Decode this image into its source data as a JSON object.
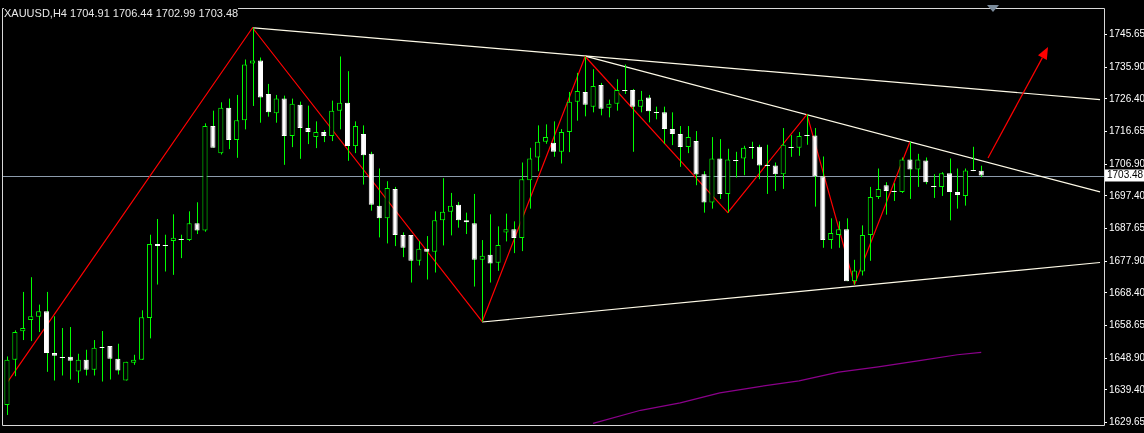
{
  "chart_data": {
    "type": "candlestick",
    "title": "XAUUSD,H4 1704.91 1706.44 1702.99 1703.48",
    "categories": [
      null,
      null,
      null,
      null,
      null,
      null,
      null,
      null,
      null,
      null,
      null,
      null,
      null,
      null,
      null,
      null,
      null,
      null,
      null,
      null,
      null,
      null,
      null,
      null,
      null,
      null,
      null,
      null,
      null,
      null,
      null,
      null,
      null,
      null,
      null,
      null,
      null,
      null,
      null,
      null,
      null,
      null,
      null,
      null,
      null,
      null,
      null,
      null,
      null,
      null,
      null,
      null,
      null,
      null,
      null,
      null,
      null,
      null,
      null,
      null,
      null,
      null,
      null,
      null,
      null,
      null,
      null,
      null,
      null,
      null,
      null,
      null,
      null,
      null,
      null,
      null,
      null,
      null,
      null,
      null,
      null,
      null,
      null,
      null,
      null,
      null,
      null,
      null,
      null,
      null,
      null,
      null,
      null,
      null,
      null,
      null,
      null,
      null,
      null,
      null,
      null,
      null,
      null,
      null,
      null,
      null,
      null,
      null,
      null,
      null,
      null,
      null,
      null,
      null,
      null,
      null,
      null,
      null,
      null,
      null,
      null,
      null,
      null,
      null,
      null,
      null,
      null,
      null,
      null,
      null,
      null,
      null,
      null,
      null,
      null,
      null,
      null,
      null,
      null
    ],
    "ylim": [
      1628.9,
      1753.6
    ],
    "yticks": [
      1745.65,
      {
        "value": 1735.9,
        "label": "1735.90"
      },
      {
        "value": 1726.4,
        "label": "1726.40"
      },
      1716.65,
      {
        "value": 1706.9,
        "label": "1706.90"
      },
      {
        "value": 1697.4,
        "label": "1697.40"
      },
      1687.65,
      {
        "value": 1677.9,
        "label": "1677.90"
      },
      {
        "value": 1668.4,
        "label": "1668.40"
      },
      1658.65,
      {
        "value": 1648.9,
        "label": "1648.90"
      },
      {
        "value": 1639.4,
        "label": "1639.40"
      },
      1629.65
    ],
    "tick_labels": "y",
    "grid": false,
    "legend": false,
    "ref_lines": [
      {
        "axis": "y",
        "value": 1703.48,
        "label": "1703.48",
        "color": "#8c9bab"
      }
    ],
    "series": [
      {
        "type": "candlestick",
        "color": "#00ff00",
        "colors": [
          "#00ff00",
          "#00ff00",
          "#00ff00",
          "#00ff00",
          "#00ff00",
          "#ffffff",
          "#ffffff",
          "#ffffff",
          "#ffffff",
          "#00ff00",
          "#ffffff",
          "#00ff00",
          "#ffffff",
          "#ffffff",
          "#ffffff",
          "#00ff00",
          "#00ff00",
          "#00ff00",
          "#00ff00",
          "#ffffff",
          "#ffffff",
          "#00ff00",
          "#ffffff",
          "#00ff00",
          "#ffffff",
          "#00ff00",
          "#ffffff",
          "#00ff00",
          "#ffffff",
          "#00ff00",
          "#00ff00",
          "#00ff00",
          "#ffffff",
          "#ffffff",
          "#00ff00",
          "#ffffff",
          "#00ff00",
          "#ffffff",
          "#ffffff",
          "#00ff00",
          "#ffffff",
          "#00ff00",
          "#00ff00",
          "#ffffff",
          "#00ff00",
          "#ffffff",
          "#ffffff",
          "#ffffff",
          "#00ff00",
          "#ffffff",
          "#ffffff",
          "#ffffff",
          "#00ff00",
          "#ffffff",
          "#00ff00",
          "#00ff00",
          "#00ff00",
          "#ffffff",
          "#ffffff",
          "#ffffff",
          "#00ff00",
          "#ffffff",
          "#00ff00",
          "#00ff00",
          "#ffffff",
          "#00ff00",
          "#00ff00",
          "#00ff00",
          "#00ff00",
          "#ffffff",
          "#00ff00",
          "#00ff00",
          "#00ff00",
          "#ffffff",
          "#00ff00",
          "#ffffff",
          "#00ff00",
          "#00ff00",
          "#ffffff",
          "#ffffff",
          "#00ff00",
          "#ffffff",
          "#ffffff",
          "#ffffff",
          "#ffffff",
          "#ffffff",
          "#00ff00",
          "#ffffff",
          "#ffffff",
          "#00ff00",
          "#ffffff",
          "#00ff00",
          "#ffffff",
          "#00ff00",
          "#ffffff",
          "#ffffff",
          "#ffffff",
          "#ffffff",
          "#00ff00",
          "#ffffff",
          "#00ff00",
          "#ffffff",
          "#ffffff",
          "#ffffff",
          "#00ff00",
          "#00ff00",
          "#ffffff",
          "#00ff00",
          "#00ff00",
          "#00ff00",
          "#00ff00",
          "#ffffff",
          "#ffffff",
          "#00ff00",
          "#ffffff",
          "#00ff00",
          "#ffffff",
          "#ffffff",
          "#00ff00",
          "#ffffff",
          "#ffffff",
          "#00ff00",
          "#ffffff",
          "#ffffff",
          null,
          null,
          null,
          null,
          null,
          null,
          null,
          null,
          null,
          null,
          null,
          null,
          null,
          null,
          null
        ],
        "ohlc": [
          [
            1634.9,
            1649.4,
            1631.9,
            1648.4
          ],
          [
            1648.4,
            1657.2,
            1643.5,
            1656.7
          ],
          [
            1656.9,
            1668.7,
            1654.3,
            1657.9
          ],
          [
            1660.3,
            1673.1,
            1654.0,
            1661.4
          ],
          [
            1661.3,
            1664.9,
            1656.7,
            1662.9
          ],
          [
            1662.9,
            1668.7,
            1644.8,
            1650.4
          ],
          [
            1650.4,
            1661.4,
            1642.2,
            1649.6
          ],
          [
            1649.3,
            1657.9,
            1643.7,
            1649.3
          ],
          [
            1649.3,
            1658.2,
            1642.5,
            1648.1
          ],
          [
            1644.9,
            1650.2,
            1641.5,
            1648.4
          ],
          [
            1648.4,
            1651.4,
            1643.7,
            1645.4
          ],
          [
            1645.4,
            1654.3,
            1643.7,
            1652.0
          ],
          [
            1652.2,
            1657.0,
            1641.9,
            1651.9
          ],
          [
            1652.5,
            1652.5,
            1642.5,
            1648.7
          ],
          [
            1648.7,
            1653.2,
            1644.0,
            1645.2
          ],
          [
            1642.2,
            1647.8,
            1642.2,
            1647.8
          ],
          [
            1647.5,
            1649.9,
            1646.9,
            1648.4
          ],
          [
            1648.4,
            1663.2,
            1648.4,
            1661.1
          ],
          [
            1660.9,
            1685.8,
            1654.8,
            1683.0
          ],
          [
            1683.0,
            1690.5,
            1670.9,
            1682.4
          ],
          [
            1682.6,
            1685.8,
            1674.8,
            1682.6
          ],
          [
            1683.9,
            1691.9,
            1673.8,
            1684.9
          ],
          [
            1684.5,
            1685.8,
            1678.8,
            1684.5
          ],
          [
            1684.2,
            1692.8,
            1683.9,
            1689.2
          ],
          [
            1689.2,
            1695.5,
            1686.0,
            1687.1
          ],
          [
            1687.1,
            1719.1,
            1686.7,
            1718.3
          ],
          [
            1718.3,
            1722.9,
            1711.8,
            1711.8
          ],
          [
            1710.2,
            1725.4,
            1709.8,
            1723.8
          ],
          [
            1723.8,
            1726.5,
            1711.4,
            1714.1
          ],
          [
            1714.1,
            1727.6,
            1708.8,
            1720.0
          ],
          [
            1720.0,
            1738.2,
            1717.3,
            1736.7
          ],
          [
            1737.0,
            1747.7,
            1724.3,
            1737.9
          ],
          [
            1737.9,
            1738.8,
            1719.3,
            1726.8
          ],
          [
            1727.9,
            1730.9,
            1721.1,
            1722.4
          ],
          [
            1722.1,
            1727.6,
            1719.3,
            1726.5
          ],
          [
            1726.5,
            1727.4,
            1706.7,
            1715.3
          ],
          [
            1715.3,
            1726.5,
            1712.0,
            1725.0
          ],
          [
            1724.7,
            1725.6,
            1708.5,
            1717.7
          ],
          [
            1717.7,
            1724.4,
            1712.9,
            1716.5
          ],
          [
            1715.0,
            1719.7,
            1711.7,
            1716.5
          ],
          [
            1716.5,
            1717.1,
            1713.5,
            1715.3
          ],
          [
            1715.3,
            1725.9,
            1713.8,
            1722.9
          ],
          [
            1722.9,
            1739.1,
            1717.3,
            1725.3
          ],
          [
            1725.3,
            1734.7,
            1707.9,
            1712.3
          ],
          [
            1712.3,
            1719.7,
            1710.2,
            1718.3
          ],
          [
            1715.9,
            1718.5,
            1700.8,
            1709.6
          ],
          [
            1710.0,
            1710.6,
            1693.0,
            1694.8
          ],
          [
            1694.5,
            1705.6,
            1685.0,
            1690.7
          ],
          [
            1690.7,
            1701.8,
            1683.2,
            1699.8
          ],
          [
            1699.5,
            1700.1,
            1682.4,
            1685.7
          ],
          [
            1685.7,
            1686.5,
            1679.1,
            1681.9
          ],
          [
            1685.7,
            1685.7,
            1671.5,
            1678.0
          ],
          [
            1678.0,
            1683.9,
            1676.6,
            1681.6
          ],
          [
            1681.6,
            1685.4,
            1672.4,
            1680.7
          ],
          [
            1680.7,
            1692.8,
            1674.5,
            1690.1
          ],
          [
            1690.1,
            1702.7,
            1682.6,
            1692.7
          ],
          [
            1692.7,
            1698.3,
            1685.6,
            1694.5
          ],
          [
            1694.8,
            1695.6,
            1687.9,
            1690.1
          ],
          [
            1690.1,
            1692.4,
            1686.0,
            1689.5
          ],
          [
            1689.2,
            1698.0,
            1670.3,
            1678.3
          ],
          [
            1678.3,
            1684.2,
            1659.8,
            1679.5
          ],
          [
            1679.8,
            1691.9,
            1671.5,
            1677.2
          ],
          [
            1677.4,
            1688.3,
            1675.0,
            1682.7
          ],
          [
            1686.5,
            1692.1,
            1683.8,
            1687.4
          ],
          [
            1687.4,
            1689.8,
            1680.3,
            1684.8
          ],
          [
            1684.8,
            1707.4,
            1680.9,
            1702.4
          ],
          [
            1702.1,
            1711.8,
            1693.6,
            1708.6
          ],
          [
            1708.9,
            1718.5,
            1704.8,
            1713.6
          ],
          [
            1713.6,
            1718.8,
            1713.0,
            1715.0
          ],
          [
            1713.3,
            1719.7,
            1709.1,
            1710.6
          ],
          [
            1710.6,
            1717.4,
            1707.1,
            1716.5
          ],
          [
            1716.5,
            1728.5,
            1710.5,
            1725.6
          ],
          [
            1725.6,
            1734.2,
            1719.9,
            1728.8
          ],
          [
            1728.5,
            1739.1,
            1721.2,
            1724.7
          ],
          [
            1724.1,
            1735.3,
            1722.4,
            1730.3
          ],
          [
            1730.6,
            1731.2,
            1721.5,
            1723.5
          ],
          [
            1723.8,
            1726.2,
            1720.9,
            1725.0
          ],
          [
            1725.0,
            1732.3,
            1722.9,
            1729.1
          ],
          [
            1729.1,
            1736.7,
            1727.9,
            1729.1
          ],
          [
            1729.1,
            1729.4,
            1710.6,
            1724.1
          ],
          [
            1724.1,
            1728.8,
            1722.4,
            1726.2
          ],
          [
            1726.8,
            1727.6,
            1719.4,
            1722.7
          ],
          [
            1722.6,
            1724.1,
            1720.3,
            1722.6
          ],
          [
            1722.4,
            1724.1,
            1713.0,
            1717.4
          ],
          [
            1717.4,
            1722.4,
            1712.6,
            1715.9
          ],
          [
            1715.9,
            1718.3,
            1706.1,
            1712.0
          ],
          [
            1712.0,
            1718.3,
            1710.2,
            1715.0
          ],
          [
            1713.8,
            1716.8,
            1700.6,
            1703.8
          ],
          [
            1703.9,
            1704.8,
            1692.4,
            1695.4
          ],
          [
            1695.4,
            1715.0,
            1693.6,
            1708.6
          ],
          [
            1708.6,
            1714.4,
            1696.5,
            1698.0
          ],
          [
            1698.0,
            1711.5,
            1692.4,
            1708.3
          ],
          [
            1708.2,
            1710.6,
            1702.9,
            1708.2
          ],
          [
            1708.6,
            1712.4,
            1703.6,
            1711.8
          ],
          [
            1712.0,
            1713.6,
            1708.5,
            1712.0
          ],
          [
            1712.1,
            1712.7,
            1702.4,
            1706.5
          ],
          [
            1706.7,
            1712.7,
            1698.0,
            1706.7
          ],
          [
            1706.5,
            1707.4,
            1698.9,
            1703.9
          ],
          [
            1703.9,
            1717.7,
            1699.5,
            1712.7
          ],
          [
            1712.0,
            1715.6,
            1709.1,
            1712.0
          ],
          [
            1711.8,
            1716.5,
            1709.4,
            1715.3
          ],
          [
            1715.5,
            1721.8,
            1712.7,
            1715.5
          ],
          [
            1715.5,
            1717.7,
            1694.2,
            1703.3
          ],
          [
            1703.3,
            1709.2,
            1681.9,
            1684.2
          ],
          [
            1684.2,
            1690.7,
            1681.6,
            1686.3
          ],
          [
            1685.7,
            1689.8,
            1681.9,
            1687.4
          ],
          [
            1687.4,
            1690.7,
            1671.9,
            1671.9
          ],
          [
            1671.9,
            1678.3,
            1670.9,
            1675.1
          ],
          [
            1674.8,
            1688.6,
            1673.6,
            1685.7
          ],
          [
            1685.7,
            1700.1,
            1678.0,
            1697.1
          ],
          [
            1697.1,
            1705.6,
            1696.5,
            1699.5
          ],
          [
            1700.6,
            1701.5,
            1691.8,
            1698.9
          ],
          [
            1698.9,
            1701.2,
            1695.9,
            1698.9
          ],
          [
            1698.6,
            1708.9,
            1698.3,
            1708.3
          ],
          [
            1708.3,
            1713.6,
            1696.5,
            1705.3
          ],
          [
            1705.3,
            1710.0,
            1700.1,
            1708.3
          ],
          [
            1708.0,
            1708.9,
            1700.9,
            1701.5
          ],
          [
            1700.3,
            1703.9,
            1696.8,
            1700.3
          ],
          [
            1700.1,
            1704.5,
            1697.4,
            1704.2
          ],
          [
            1704.2,
            1708.6,
            1690.1,
            1698.6
          ],
          [
            1698.6,
            1705.6,
            1693.6,
            1697.7
          ],
          [
            1697.4,
            1705.6,
            1694.5,
            1705.0
          ],
          [
            1705.1,
            1712.1,
            1704.8,
            1705.1
          ],
          [
            1704.91,
            1706.44,
            1702.99,
            1703.48
          ],
          null,
          null,
          null,
          null,
          null,
          null,
          null,
          null,
          null,
          null,
          null,
          null,
          null,
          null,
          null
        ]
      },
      {
        "type": "line",
        "color": "#ff0000",
        "values": [
          1641.5,
          null,
          null,
          null,
          null,
          null,
          null,
          null,
          null,
          null,
          null,
          null,
          null,
          null,
          null,
          null,
          null,
          null,
          null,
          null,
          null,
          null,
          null,
          null,
          null,
          null,
          null,
          null,
          null,
          null,
          null,
          1747.7,
          null,
          null,
          null,
          null,
          null,
          null,
          null,
          null,
          null,
          null,
          null,
          null,
          null,
          null,
          null,
          null,
          null,
          null,
          null,
          null,
          null,
          null,
          null,
          null,
          null,
          null,
          null,
          null,
          1659.8,
          null,
          null,
          null,
          null,
          null,
          null,
          null,
          null,
          null,
          null,
          null,
          null,
          1739.1,
          null,
          null,
          null,
          null,
          null,
          null,
          null,
          null,
          null,
          null,
          null,
          null,
          null,
          null,
          null,
          null,
          null,
          1692.4,
          null,
          null,
          null,
          null,
          null,
          null,
          null,
          null,
          null,
          1721.8,
          null,
          null,
          null,
          null,
          null,
          1670.9,
          null,
          null,
          null,
          null,
          null,
          null,
          1713.6,
          null,
          null,
          null,
          null,
          null,
          null,
          null,
          null,
          null,
          null,
          null,
          null,
          null,
          null,
          null,
          null,
          null,
          null,
          null,
          null,
          null,
          null,
          null,
          null
        ]
      },
      {
        "type": "line",
        "color": "#fffbe8",
        "values": [
          null,
          null,
          null,
          null,
          null,
          null,
          null,
          null,
          null,
          null,
          null,
          null,
          null,
          null,
          null,
          null,
          null,
          null,
          null,
          null,
          null,
          null,
          null,
          null,
          null,
          null,
          null,
          null,
          null,
          null,
          null,
          1747.7,
          null,
          null,
          null,
          null,
          null,
          null,
          null,
          null,
          null,
          null,
          null,
          null,
          null,
          null,
          null,
          null,
          null,
          null,
          null,
          null,
          null,
          null,
          null,
          null,
          null,
          null,
          null,
          null,
          null,
          null,
          null,
          null,
          null,
          null,
          null,
          null,
          null,
          null,
          null,
          null,
          null,
          null,
          null,
          null,
          null,
          null,
          null,
          null,
          null,
          null,
          null,
          null,
          null,
          null,
          null,
          null,
          null,
          null,
          null,
          null,
          null,
          null,
          null,
          null,
          null,
          null,
          null,
          null,
          null,
          null,
          null,
          null,
          null,
          null,
          null,
          null,
          null,
          null,
          null,
          null,
          null,
          null,
          null,
          null,
          null,
          null,
          null,
          null,
          null,
          null,
          null,
          null,
          null,
          null,
          null,
          null,
          null,
          null,
          null,
          null,
          null,
          null,
          null,
          null,
          null,
          null,
          1726.2
        ]
      },
      {
        "type": "line",
        "color": "#fffbe8",
        "values": [
          null,
          null,
          null,
          null,
          null,
          null,
          null,
          null,
          null,
          null,
          null,
          null,
          null,
          null,
          null,
          null,
          null,
          null,
          null,
          null,
          null,
          null,
          null,
          null,
          null,
          null,
          null,
          null,
          null,
          null,
          null,
          null,
          null,
          null,
          null,
          null,
          null,
          null,
          null,
          null,
          null,
          null,
          null,
          null,
          null,
          null,
          null,
          null,
          null,
          null,
          null,
          null,
          null,
          null,
          null,
          null,
          null,
          null,
          null,
          null,
          null,
          null,
          null,
          null,
          null,
          null,
          null,
          null,
          null,
          null,
          null,
          null,
          null,
          1739.2,
          null,
          null,
          null,
          null,
          null,
          null,
          null,
          null,
          null,
          null,
          null,
          null,
          null,
          null,
          null,
          null,
          null,
          null,
          null,
          null,
          null,
          null,
          null,
          null,
          null,
          null,
          null,
          null,
          null,
          null,
          null,
          null,
          null,
          null,
          null,
          null,
          null,
          null,
          null,
          null,
          null,
          null,
          null,
          null,
          null,
          null,
          null,
          null,
          null,
          null,
          null,
          null,
          null,
          null,
          null,
          null,
          null,
          null,
          null,
          null,
          null,
          null,
          null,
          null,
          1698.6
        ]
      },
      {
        "type": "line",
        "color": "#fffbe8",
        "values": [
          null,
          null,
          null,
          null,
          null,
          null,
          null,
          null,
          null,
          null,
          null,
          null,
          null,
          null,
          null,
          null,
          null,
          null,
          null,
          null,
          null,
          null,
          null,
          null,
          null,
          null,
          null,
          null,
          null,
          null,
          null,
          null,
          null,
          null,
          null,
          null,
          null,
          null,
          null,
          null,
          null,
          null,
          null,
          null,
          null,
          null,
          null,
          null,
          null,
          null,
          null,
          null,
          null,
          null,
          null,
          null,
          null,
          null,
          null,
          null,
          1659.7,
          null,
          null,
          null,
          null,
          null,
          null,
          null,
          null,
          null,
          null,
          null,
          null,
          null,
          null,
          null,
          null,
          null,
          null,
          null,
          null,
          null,
          null,
          null,
          null,
          null,
          null,
          null,
          null,
          null,
          null,
          null,
          null,
          null,
          null,
          null,
          null,
          null,
          null,
          null,
          null,
          null,
          null,
          null,
          null,
          null,
          null,
          null,
          null,
          null,
          null,
          null,
          null,
          null,
          null,
          null,
          null,
          null,
          null,
          null,
          null,
          null,
          null,
          null,
          null,
          null,
          null,
          null,
          null,
          null,
          null,
          null,
          null,
          null,
          null,
          null,
          null,
          null,
          1677.5
        ]
      },
      {
        "type": "line",
        "color": "#8b008b",
        "values": [
          null,
          null,
          null,
          null,
          null,
          null,
          null,
          null,
          null,
          null,
          null,
          null,
          null,
          null,
          null,
          null,
          null,
          null,
          null,
          null,
          null,
          null,
          null,
          null,
          null,
          null,
          null,
          null,
          null,
          null,
          null,
          null,
          null,
          null,
          null,
          null,
          null,
          null,
          null,
          null,
          null,
          null,
          null,
          null,
          null,
          null,
          null,
          null,
          null,
          null,
          null,
          null,
          null,
          null,
          null,
          null,
          null,
          null,
          null,
          null,
          null,
          null,
          null,
          null,
          null,
          null,
          null,
          null,
          null,
          null,
          null,
          null,
          null,
          null,
          1629.4,
          null,
          null,
          null,
          null,
          null,
          1633.3,
          null,
          null,
          null,
          null,
          1635.5,
          null,
          null,
          null,
          null,
          1638.5,
          null,
          null,
          null,
          null,
          1640.4,
          null,
          null,
          null,
          null,
          1642.1,
          null,
          null,
          null,
          null,
          1644.7,
          null,
          null,
          null,
          null,
          1646.3,
          null,
          null,
          null,
          null,
          1648.1,
          null,
          null,
          null,
          null,
          1649.9,
          null,
          null,
          1650.6,
          null,
          null,
          null,
          null,
          null,
          null,
          null,
          null,
          null,
          null,
          null,
          null,
          null,
          null,
          null
        ]
      }
    ]
  }
}
